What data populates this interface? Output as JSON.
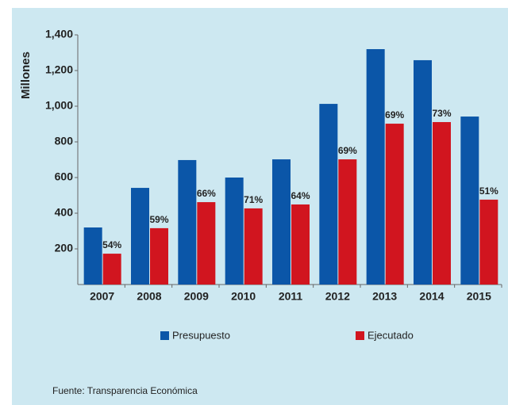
{
  "chart_data": {
    "type": "bar",
    "y_label": "Millones",
    "categories": [
      "2007",
      "2008",
      "2009",
      "2010",
      "2011",
      "2012",
      "2013",
      "2014",
      "2015"
    ],
    "series": [
      {
        "name": "Presupuesto",
        "color": "#0b56a8",
        "values": [
          320,
          542,
          698,
          600,
          702,
          1013,
          1320,
          1258,
          942
        ]
      },
      {
        "name": "Ejecutado",
        "color": "#d1151f",
        "values": [
          173,
          316,
          462,
          427,
          449,
          702,
          902,
          911,
          476
        ]
      }
    ],
    "execution_labels": [
      "54%",
      "59%",
      "66%",
      "71%",
      "64%",
      "69%",
      "69%",
      "73%",
      "51%"
    ],
    "ylim": [
      0,
      1400
    ],
    "yticks": [
      200,
      400,
      600,
      800,
      {
        "value": 1000,
        "label": "1,000"
      },
      {
        "value": 1200,
        "label": "1,200"
      },
      {
        "value": 1400,
        "label": "1,400"
      }
    ],
    "source": "Fuente: Transparencia Económica"
  }
}
